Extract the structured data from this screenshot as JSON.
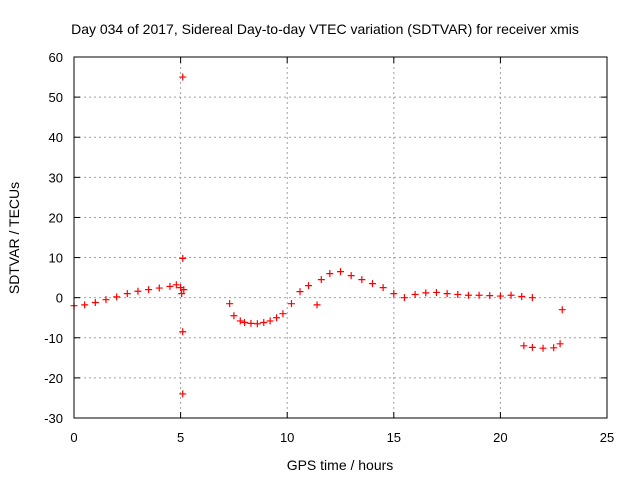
{
  "chart_data": {
    "type": "scatter",
    "title": "Day 034 of 2017, Sidereal Day-to-day VTEC variation (SDTVAR) for receiver xmis",
    "xlabel": "GPS time / hours",
    "ylabel": "SDTVAR / TECUs",
    "xlim": [
      0,
      25
    ],
    "ylim": [
      -30,
      60
    ],
    "xticks": [
      "0",
      "5",
      "10",
      "15",
      "20",
      "25"
    ],
    "yticks": [
      "-30",
      "-20",
      "-10",
      "0",
      "10",
      "20",
      "30",
      "40",
      "50",
      "60"
    ],
    "grid": true,
    "marker": "plus",
    "series": [
      {
        "name": "SDTVAR",
        "color": "#ff0000",
        "x": [
          0.0,
          0.5,
          1.0,
          1.5,
          2.0,
          2.5,
          3.0,
          3.5,
          4.0,
          4.5,
          4.8,
          5.0,
          5.05,
          5.1,
          5.1,
          5.1,
          5.1,
          5.15,
          7.3,
          7.5,
          7.8,
          8.0,
          8.3,
          8.6,
          8.9,
          9.2,
          9.5,
          9.8,
          10.2,
          10.6,
          11.0,
          11.4,
          11.6,
          12.0,
          12.5,
          13.0,
          13.5,
          14.0,
          14.5,
          15.0,
          15.5,
          16.0,
          16.5,
          17.0,
          17.5,
          18.0,
          18.5,
          19.0,
          19.5,
          20.0,
          20.5,
          21.0,
          21.5,
          21.1,
          21.5,
          22.0,
          22.5,
          22.8,
          22.9
        ],
        "y": [
          -2.0,
          -1.8,
          -1.2,
          -0.5,
          0.2,
          1.0,
          1.6,
          2.0,
          2.4,
          2.8,
          3.2,
          2.5,
          1.0,
          55.0,
          9.8,
          -8.5,
          -24.0,
          2.0,
          -1.5,
          -4.5,
          -5.8,
          -6.2,
          -6.4,
          -6.5,
          -6.2,
          -5.8,
          -5.0,
          -4.0,
          -1.5,
          1.5,
          3.0,
          -1.8,
          4.5,
          6.0,
          6.5,
          5.5,
          4.5,
          3.5,
          2.5,
          1.0,
          0.0,
          0.8,
          1.2,
          1.3,
          1.0,
          0.8,
          0.6,
          0.6,
          0.5,
          0.4,
          0.6,
          0.3,
          0.0,
          -12.0,
          -12.4,
          -12.6,
          -12.5,
          -11.5,
          -3.0
        ]
      }
    ]
  }
}
